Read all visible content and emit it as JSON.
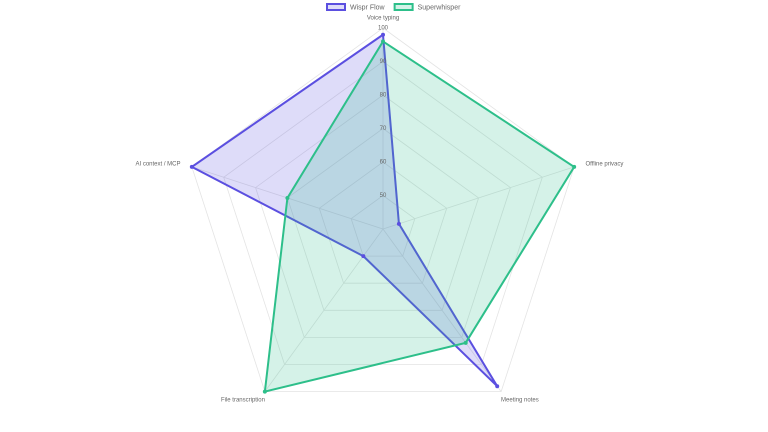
{
  "chart_data": {
    "type": "radar",
    "categories": [
      "Voice typing",
      "Offline privacy",
      "Meeting notes",
      "File transcription",
      "AI context / MCP"
    ],
    "series": [
      {
        "name": "Wispr Flow",
        "color": "#5b4fe0",
        "values": [
          98,
          45,
          98,
          50,
          100
        ]
      },
      {
        "name": "Superwhisper",
        "color": "#2dbf8a",
        "values": [
          96,
          100,
          82,
          100,
          70
        ]
      }
    ],
    "rlim": [
      40,
      100
    ],
    "rticks": [
      50,
      60,
      70,
      80,
      90,
      100
    ],
    "grid": true,
    "legend": "top"
  }
}
